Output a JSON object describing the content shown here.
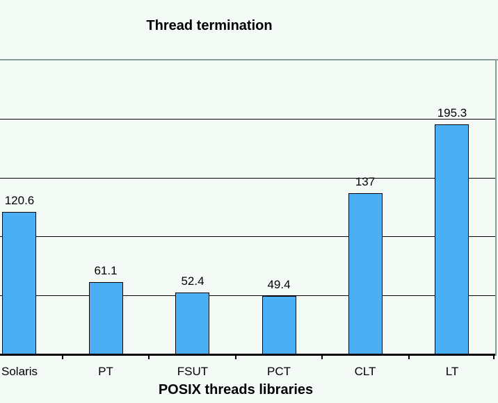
{
  "chart_data": {
    "type": "bar",
    "title": "Thread termination",
    "xlabel": "POSIX threads libraries",
    "ylabel": "",
    "categories": [
      "Solaris",
      "PT",
      "FSUT",
      "PCT",
      "CLT",
      "LT"
    ],
    "values": [
      120.6,
      61.1,
      52.4,
      49.4,
      137,
      195.3
    ],
    "ylim": [
      0,
      250
    ],
    "gridline_step": 50,
    "grid": true,
    "legend": "none",
    "colors": {
      "background": "#F4FAF6",
      "bar_fill": "#4BAFF5",
      "bar_border": "#000000",
      "gridline": "#000000",
      "axis": "#000000",
      "plot_border": "#879B96",
      "text": "#000000"
    }
  }
}
